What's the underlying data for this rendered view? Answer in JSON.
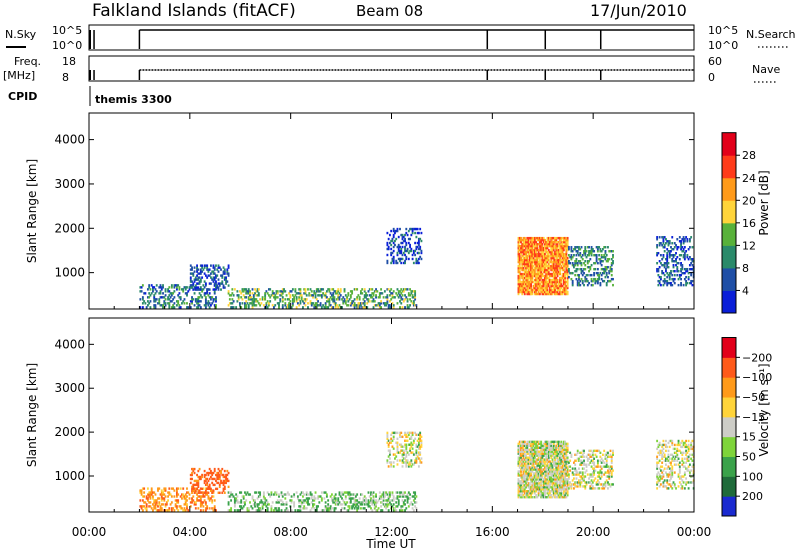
{
  "header": {
    "site": "Falkland Islands (fitACF)",
    "beam": "Beam 08",
    "date": "17/Jun/2010"
  },
  "strips": {
    "nsky_label": "N.Sky",
    "nsky_ticks": [
      "10^5",
      "10^0"
    ],
    "nsearch_label": "N.Search",
    "nsearch_ticks": [
      "10^5",
      "10^0"
    ],
    "freq_label": "Freq.",
    "freq_unit": "[MHz]",
    "freq_ticks": [
      "18",
      "8"
    ],
    "nave_label": "Nave",
    "nave_ticks": [
      "60",
      "0"
    ],
    "cpid_label": "CPID",
    "cpid_value": "themis 3300"
  },
  "chart_data": [
    {
      "type": "heatmap",
      "panel": "power",
      "ylabel": "Slant Range [km]",
      "yticks": [
        1000,
        2000,
        3000,
        4000
      ],
      "ylim": [
        180,
        4600
      ],
      "xlim": [
        0,
        24
      ],
      "colorbar_label": "Power [dB]",
      "colorbar_ticks": [
        "4",
        "8",
        "12",
        "16",
        "20",
        "24",
        "28"
      ],
      "colorbar_colors": [
        "#0a1fd8",
        "#1f4fa6",
        "#2a8a6a",
        "#58b13a",
        "#ffd43a",
        "#ff9a1a",
        "#ff3b1a",
        "#e2001a"
      ],
      "scatter_regions": [
        {
          "t0": 2.0,
          "t1": 5.0,
          "r0": 200,
          "r1": 700,
          "power_mean": 8
        },
        {
          "t0": 4.0,
          "t1": 5.5,
          "r0": 600,
          "r1": 1150,
          "power_mean": 6
        },
        {
          "t0": 5.5,
          "t1": 13.0,
          "r0": 200,
          "r1": 650,
          "power_mean": 12
        },
        {
          "t0": 11.8,
          "t1": 13.2,
          "r0": 1200,
          "r1": 2000,
          "power_mean": 5
        },
        {
          "t0": 17.0,
          "t1": 19.0,
          "r0": 500,
          "r1": 1800,
          "power_mean": 22
        },
        {
          "t0": 19.0,
          "t1": 20.8,
          "r0": 700,
          "r1": 1600,
          "power_mean": 10
        },
        {
          "t0": 22.5,
          "t1": 24.0,
          "r0": 700,
          "r1": 1800,
          "power_mean": 6
        }
      ]
    },
    {
      "type": "heatmap",
      "panel": "velocity",
      "ylabel": "Slant Range [km]",
      "yticks": [
        1000,
        2000,
        3000,
        4000
      ],
      "ylim": [
        180,
        4600
      ],
      "xlim": [
        0,
        24
      ],
      "xticks": [
        "00:00",
        "04:00",
        "08:00",
        "12:00",
        "16:00",
        "20:00",
        "00:00"
      ],
      "xlabel": "Time UT",
      "colorbar_label": "Velocity [m s⁻¹]",
      "colorbar_ticks": [
        "200",
        "100",
        "50",
        "15",
        "−15",
        "−50",
        "−100",
        "−200"
      ],
      "colorbar_colors": [
        "#1a2ad0",
        "#1f6b3a",
        "#3aa24a",
        "#7ed43a",
        "#cdcdc7",
        "#ffd43a",
        "#ff9a1a",
        "#ff5a1a",
        "#e2001a"
      ],
      "scatter_regions": [
        {
          "t0": 2.0,
          "t1": 5.0,
          "r0": 200,
          "r1": 700,
          "velocity_mean": -60
        },
        {
          "t0": 4.0,
          "t1": 5.5,
          "r0": 600,
          "r1": 1150,
          "velocity_mean": -100
        },
        {
          "t0": 5.5,
          "t1": 13.0,
          "r0": 200,
          "r1": 650,
          "velocity_mean": 30
        },
        {
          "t0": 11.8,
          "t1": 13.2,
          "r0": 1200,
          "r1": 2000,
          "velocity_mean": 0
        },
        {
          "t0": 17.0,
          "t1": 19.0,
          "r0": 500,
          "r1": 1800,
          "velocity_mean": 0
        },
        {
          "t0": 19.0,
          "t1": 20.8,
          "r0": 700,
          "r1": 1600,
          "velocity_mean": 0
        },
        {
          "t0": 22.5,
          "t1": 24.0,
          "r0": 700,
          "r1": 1800,
          "velocity_mean": 0
        }
      ]
    }
  ]
}
